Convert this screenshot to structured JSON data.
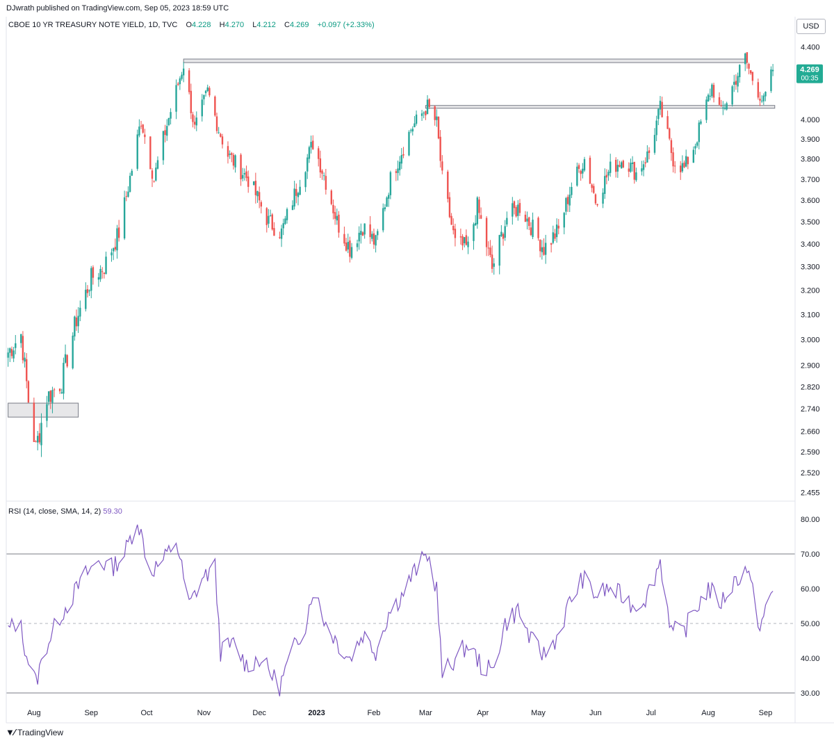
{
  "header": {
    "published": "DJwrath published on TradingView.com, Sep 05, 2023 18:59 UTC"
  },
  "legend": {
    "symbol": "CBOE 10 YR TREASURY NOTE YIELD, 1D, TVC",
    "o_label": "O",
    "o_value": "4.228",
    "h_label": "H",
    "h_value": "4.270",
    "l_label": "L",
    "l_value": "4.212",
    "c_label": "C",
    "c_value": "4.269",
    "change": "+0.097 (+2.33%)"
  },
  "currency": "USD",
  "last_price": {
    "value": "4.269",
    "countdown": "00:35"
  },
  "rsi_legend": {
    "label": "RSI (14, close, SMA, 14, 2)",
    "value": "59.30"
  },
  "footer": {
    "brand": "TradingView",
    "logo_icon": "tradingview-logo-icon"
  },
  "colors": {
    "up": "#26a69a",
    "down": "#ef5350",
    "rsi": "#7e57c2",
    "badge": "#22ab94"
  },
  "chart_data": [
    {
      "type": "candlestick",
      "title": "CBOE 10 YR TREASURY NOTE YIELD",
      "interval": "1D",
      "y_ticks": [
        "4.400",
        "4.000",
        "3.900",
        "3.800",
        "3.700",
        "3.600",
        "3.500",
        "3.400",
        "3.300",
        "3.200",
        "3.100",
        "3.000",
        "2.900",
        "2.820",
        "2.740",
        "2.660",
        "2.590",
        "2.520",
        "2.455"
      ],
      "x_ticks": [
        "Aug",
        "Sep",
        "Oct",
        "Nov",
        "Dec",
        "2023",
        "Feb",
        "Mar",
        "Apr",
        "May",
        "Jun",
        "Jul",
        "Aug",
        "Sep"
      ],
      "ylim": [
        2.43,
        4.47
      ],
      "keypoints": [
        [
          "2022-07-18",
          2.95
        ],
        [
          "2022-07-25",
          3.02
        ],
        [
          "2022-07-29",
          2.77
        ],
        [
          "2022-08-02",
          2.6
        ],
        [
          "2022-08-08",
          2.78
        ],
        [
          "2022-08-16",
          2.84
        ],
        [
          "2022-08-24",
          3.08
        ],
        [
          "2022-09-01",
          3.25
        ],
        [
          "2022-09-08",
          3.3
        ],
        [
          "2022-09-16",
          3.45
        ],
        [
          "2022-09-23",
          3.75
        ],
        [
          "2022-09-28",
          4.0
        ],
        [
          "2022-10-05",
          3.7
        ],
        [
          "2022-10-10",
          3.9
        ],
        [
          "2022-10-21",
          4.3
        ],
        [
          "2022-10-27",
          3.95
        ],
        [
          "2022-11-03",
          4.15
        ],
        [
          "2022-11-09",
          3.95
        ],
        [
          "2022-11-14",
          3.82
        ],
        [
          "2022-11-25",
          3.7
        ],
        [
          "2022-12-06",
          3.5
        ],
        [
          "2022-12-13",
          3.45
        ],
        [
          "2022-12-21",
          3.65
        ],
        [
          "2022-12-30",
          3.88
        ],
        [
          "2023-01-05",
          3.72
        ],
        [
          "2023-01-12",
          3.5
        ],
        [
          "2023-01-19",
          3.38
        ],
        [
          "2023-01-26",
          3.48
        ],
        [
          "2023-02-02",
          3.4
        ],
        [
          "2023-02-10",
          3.7
        ],
        [
          "2023-02-21",
          3.95
        ],
        [
          "2023-03-02",
          4.07
        ],
        [
          "2023-03-07",
          3.98
        ],
        [
          "2023-03-10",
          3.7
        ],
        [
          "2023-03-17",
          3.4
        ],
        [
          "2023-03-24",
          3.38
        ],
        [
          "2023-03-29",
          3.57
        ],
        [
          "2023-04-06",
          3.29
        ],
        [
          "2023-04-14",
          3.52
        ],
        [
          "2023-04-21",
          3.57
        ],
        [
          "2023-05-04",
          3.38
        ],
        [
          "2023-05-12",
          3.46
        ],
        [
          "2023-05-19",
          3.67
        ],
        [
          "2023-05-26",
          3.8
        ],
        [
          "2023-06-01",
          3.6
        ],
        [
          "2023-06-09",
          3.75
        ],
        [
          "2023-06-16",
          3.8
        ],
        [
          "2023-06-23",
          3.73
        ],
        [
          "2023-06-30",
          3.83
        ],
        [
          "2023-07-06",
          4.06
        ],
        [
          "2023-07-13",
          3.8
        ],
        [
          "2023-07-19",
          3.75
        ],
        [
          "2023-07-25",
          3.88
        ],
        [
          "2023-08-03",
          4.18
        ],
        [
          "2023-08-08",
          4.03
        ],
        [
          "2023-08-21",
          4.34
        ],
        [
          "2023-08-24",
          4.24
        ],
        [
          "2023-08-31",
          4.09
        ],
        [
          "2023-09-05",
          4.269
        ]
      ],
      "annotations": [
        {
          "kind": "rectangle",
          "from": "2022-10-21",
          "to": "2023-08-22",
          "y_from": 4.31,
          "y_to": 4.33
        },
        {
          "kind": "rectangle",
          "from": "2023-03-01",
          "to": "2023-09-06",
          "y_from": 4.06,
          "y_to": 4.075
        },
        {
          "kind": "rectangle",
          "from": "2022-07-18",
          "to": "2022-08-25",
          "y_from": 2.71,
          "y_to": 2.76
        }
      ]
    },
    {
      "type": "line",
      "title": "RSI (14, close, SMA, 14, 2)",
      "y_ticks": [
        "80.00",
        "70.00",
        "60.00",
        "50.00",
        "40.00",
        "30.00"
      ],
      "ylim": [
        27,
        85
      ],
      "bands": [
        70,
        50,
        30
      ],
      "series": [
        {
          "name": "RSI",
          "points": [
            [
              "2022-07-18",
              48
            ],
            [
              "2022-07-24",
              51
            ],
            [
              "2022-07-28",
              41
            ],
            [
              "2022-08-02",
              33
            ],
            [
              "2022-08-08",
              44
            ],
            [
              "2022-08-15",
              52
            ],
            [
              "2022-08-22",
              58
            ],
            [
              "2022-08-29",
              64
            ],
            [
              "2022-09-05",
              68
            ],
            [
              "2022-09-12",
              66
            ],
            [
              "2022-09-19",
              70
            ],
            [
              "2022-09-26",
              80
            ],
            [
              "2022-10-03",
              65
            ],
            [
              "2022-10-10",
              68
            ],
            [
              "2022-10-17",
              74
            ],
            [
              "2022-10-24",
              55
            ],
            [
              "2022-10-31",
              63
            ],
            [
              "2022-11-07",
              66
            ],
            [
              "2022-11-10",
              42
            ],
            [
              "2022-11-17",
              44
            ],
            [
              "2022-11-24",
              38
            ],
            [
              "2022-12-01",
              40
            ],
            [
              "2022-12-08",
              35
            ],
            [
              "2022-12-12",
              32
            ],
            [
              "2022-12-19",
              42
            ],
            [
              "2022-12-26",
              50
            ],
            [
              "2022-12-30",
              60
            ],
            [
              "2023-01-06",
              50
            ],
            [
              "2023-01-13",
              44
            ],
            [
              "2023-01-19",
              40
            ],
            [
              "2023-01-26",
              47
            ],
            [
              "2023-02-02",
              42
            ],
            [
              "2023-02-09",
              53
            ],
            [
              "2023-02-16",
              58
            ],
            [
              "2023-02-23",
              65
            ],
            [
              "2023-03-02",
              70
            ],
            [
              "2023-03-07",
              60
            ],
            [
              "2023-03-10",
              35
            ],
            [
              "2023-03-17",
              40
            ],
            [
              "2023-03-24",
              44
            ],
            [
              "2023-03-31",
              38
            ],
            [
              "2023-04-06",
              36
            ],
            [
              "2023-04-13",
              50
            ],
            [
              "2023-04-20",
              54
            ],
            [
              "2023-04-27",
              45
            ],
            [
              "2023-05-04",
              41
            ],
            [
              "2023-05-11",
              46
            ],
            [
              "2023-05-18",
              56
            ],
            [
              "2023-05-25",
              63
            ],
            [
              "2023-06-01",
              58
            ],
            [
              "2023-06-08",
              60
            ],
            [
              "2023-06-15",
              58
            ],
            [
              "2023-06-22",
              55
            ],
            [
              "2023-06-29",
              58
            ],
            [
              "2023-07-06",
              68
            ],
            [
              "2023-07-12",
              48
            ],
            [
              "2023-07-18",
              47
            ],
            [
              "2023-07-25",
              54
            ],
            [
              "2023-08-01",
              60
            ],
            [
              "2023-08-08",
              56
            ],
            [
              "2023-08-15",
              62
            ],
            [
              "2023-08-22",
              66
            ],
            [
              "2023-08-29",
              49
            ],
            [
              "2023-09-05",
              59.3
            ]
          ]
        }
      ]
    }
  ]
}
